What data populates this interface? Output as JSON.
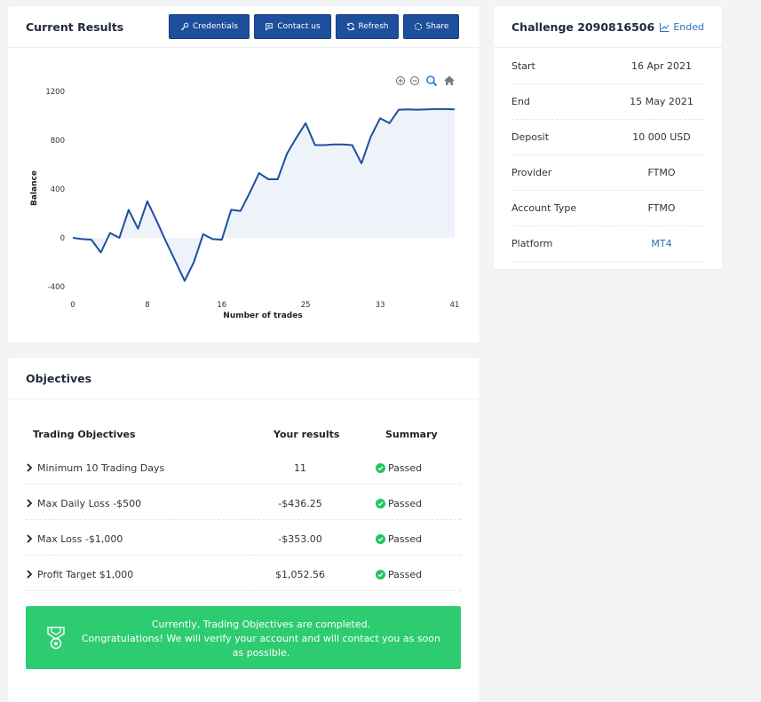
{
  "results": {
    "title": "Current Results",
    "buttons": {
      "credentials": "Credentials",
      "contact": "Contact us",
      "refresh": "Refresh",
      "share": "Share"
    }
  },
  "chart_data": {
    "type": "area",
    "xlabel": "Number of trades",
    "ylabel": "Balance",
    "x_ticks": [
      "0",
      "8",
      "16",
      "25",
      "33",
      "41"
    ],
    "y_ticks": [
      "1200",
      "800",
      "400",
      "0",
      "-400"
    ],
    "ylim": [
      -400,
      1200
    ],
    "xlim": [
      0,
      41
    ],
    "grid": false,
    "fill_color": "#eef3fa",
    "line_color": "#1e4fa0",
    "points": [
      [
        0,
        0
      ],
      [
        1,
        -10
      ],
      [
        2,
        -15
      ],
      [
        3,
        -120
      ],
      [
        4,
        40
      ],
      [
        5,
        0
      ],
      [
        6,
        230
      ],
      [
        7,
        75
      ],
      [
        8,
        300
      ],
      [
        9,
        140
      ],
      [
        10,
        -30
      ],
      [
        11,
        -190
      ],
      [
        12,
        -353
      ],
      [
        13,
        -200
      ],
      [
        14,
        30
      ],
      [
        15,
        -10
      ],
      [
        16,
        -15
      ],
      [
        17,
        230
      ],
      [
        18,
        220
      ],
      [
        19,
        370
      ],
      [
        20,
        530
      ],
      [
        21,
        480
      ],
      [
        22,
        480
      ],
      [
        23,
        690
      ],
      [
        24,
        820
      ],
      [
        25,
        940
      ],
      [
        26,
        760
      ],
      [
        27,
        760
      ],
      [
        28,
        765
      ],
      [
        29,
        765
      ],
      [
        30,
        760
      ],
      [
        31,
        610
      ],
      [
        32,
        830
      ],
      [
        33,
        980
      ],
      [
        34,
        940
      ],
      [
        35,
        1050
      ],
      [
        36,
        1052
      ],
      [
        37,
        1050
      ],
      [
        38,
        1052
      ],
      [
        39,
        1055
      ],
      [
        40,
        1055
      ],
      [
        41,
        1053
      ]
    ]
  },
  "challenge": {
    "title": "Challenge 2090816506",
    "status": "Ended",
    "rows": [
      {
        "label": "Start",
        "value": "16 Apr 2021"
      },
      {
        "label": "End",
        "value": "15 May 2021"
      },
      {
        "label": "Deposit",
        "value": "10 000 USD"
      },
      {
        "label": "Provider",
        "value": "FTMO"
      },
      {
        "label": "Account Type",
        "value": "FTMO"
      },
      {
        "label": "Platform",
        "value": "MT4"
      }
    ]
  },
  "objectives": {
    "title": "Objectives",
    "headers": {
      "objective": "Trading Objectives",
      "results": "Your results",
      "summary": "Summary"
    },
    "rows": [
      {
        "name": "Minimum 10 Trading Days",
        "result": "11",
        "summary": "Passed"
      },
      {
        "name": "Max Daily Loss -$500",
        "result": "-$436.25",
        "summary": "Passed"
      },
      {
        "name": "Max Loss -$1,000",
        "result": "-$353.00",
        "summary": "Passed"
      },
      {
        "name": "Profit Target $1,000",
        "result": "$1,052.56",
        "summary": "Passed"
      }
    ],
    "banner": {
      "line1": "Currently, Trading Objectives are completed.",
      "line2": "Congratulations! We will verify your account and will contact you as soon as possible."
    }
  }
}
